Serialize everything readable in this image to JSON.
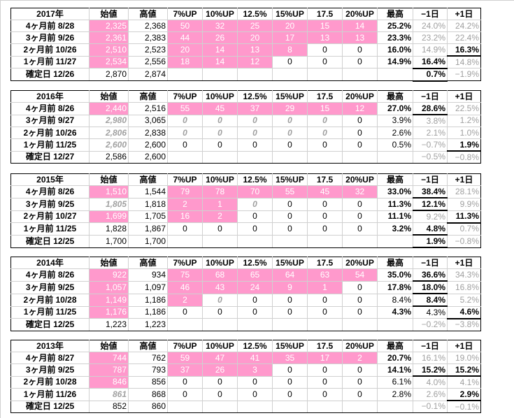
{
  "blocks": [
    {
      "year": "2017年",
      "headers": [
        "始値",
        "高値",
        "7%UP",
        "10%UP",
        "12.5%",
        "15%UP",
        "17.5",
        "20%UP",
        "最高",
        "−1日",
        "+1日"
      ],
      "rows": [
        {
          "label": "4ヶ月前  8/28",
          "open": "2,325",
          "high": "2,368",
          "ups": [
            "50",
            "32",
            "25",
            "20",
            "15",
            "14"
          ],
          "max": "25.2%",
          "m1": "24.0%",
          "p1": "24.2%"
        },
        {
          "label": "3ヶ月前  9/26",
          "open": "2,361",
          "high": "2,383",
          "ups": [
            "44",
            "26",
            "20",
            "17",
            "13",
            "13"
          ],
          "max": "23.3%",
          "m1": "23.2%",
          "p1": "22.4%"
        },
        {
          "label": "2ヶ月前  10/26",
          "open": "2,510",
          "high": "2,523",
          "ups": [
            "20",
            "14",
            "13",
            "8",
            "0",
            "0"
          ],
          "max": "16.0%",
          "m1": "14.9%",
          "p1": "16.3%"
        },
        {
          "label": "1ヶ月前  11/27",
          "open": "2,534",
          "high": "2,556",
          "ups": [
            "18",
            "14",
            "12",
            "0",
            "0",
            "0"
          ],
          "max": "14.9%",
          "m1": "16.4%",
          "p1": "14.8%"
        },
        {
          "label": "確定日  12/26",
          "open": "2,870",
          "high": "2,874",
          "ups": [
            "",
            "",
            "",
            "",
            "",
            ""
          ],
          "max": "",
          "m1": "0.7%",
          "p1": "−1.9%"
        }
      ]
    },
    {
      "year": "2016年",
      "headers": [
        "始値",
        "高値",
        "7%UP",
        "10%UP",
        "12.5%",
        "15%UP",
        "17.5",
        "20%UP",
        "最高",
        "−1日",
        "+1日"
      ],
      "rows": [
        {
          "label": "4ヶ月前  8/26",
          "open": "2,440",
          "high": "2,516",
          "ups": [
            "55",
            "45",
            "37",
            "29",
            "15",
            "12"
          ],
          "max": "27.0%",
          "m1": "28.6%",
          "p1": "22.5%"
        },
        {
          "label": "3ヶ月前  9/27",
          "open": "2,980",
          "high": "3,065",
          "ups": [
            "0",
            "0",
            "0",
            "0",
            "0",
            "0"
          ],
          "max": "3.9%",
          "m1": "3.8%",
          "p1": "1.2%"
        },
        {
          "label": "2ヶ月前  10/26",
          "open": "2,806",
          "high": "2,838",
          "ups": [
            "0",
            "0",
            "0",
            "0",
            "0",
            "0"
          ],
          "max": "2.6%",
          "m1": "2.1%",
          "p1": "1.0%"
        },
        {
          "label": "1ヶ月前  11/25",
          "open": "2,600",
          "high": "2,600",
          "ups": [
            "0",
            "0",
            "0",
            "0",
            "0",
            "0"
          ],
          "max": "0.5%",
          "m1": "−0.7%",
          "p1": "1.9%"
        },
        {
          "label": "確定日  12/27",
          "open": "2,586",
          "high": "2,600",
          "ups": [
            "",
            "",
            "",
            "",
            "",
            ""
          ],
          "max": "",
          "m1": "−0.5%",
          "p1": "−0.8%"
        }
      ]
    },
    {
      "year": "2015年",
      "headers": [
        "始値",
        "高値",
        "7%UP",
        "10%UP",
        "12.5%",
        "15%UP",
        "17.5",
        "20%UP",
        "最高",
        "−1日",
        "+1日"
      ],
      "rows": [
        {
          "label": "4ヶ月前  8/26",
          "open": "1,510",
          "high": "1,544",
          "ups": [
            "79",
            "78",
            "70",
            "55",
            "45",
            "32"
          ],
          "max": "33.0%",
          "m1": "38.4%",
          "p1": "28.1%"
        },
        {
          "label": "3ヶ月前  9/25",
          "open": "1,805",
          "high": "1,818",
          "ups": [
            "2",
            "1",
            "0",
            "0",
            "0",
            "0"
          ],
          "max": "11.3%",
          "m1": "12.1%",
          "p1": "9.9%"
        },
        {
          "label": "2ヶ月前  10/27",
          "open": "1,699",
          "high": "1,705",
          "ups": [
            "16",
            "2",
            "0",
            "0",
            "0",
            "0"
          ],
          "max": "11.1%",
          "m1": "9.2%",
          "p1": "11.3%"
        },
        {
          "label": "1ヶ月前  11/25",
          "open": "1,828",
          "high": "1,867",
          "ups": [
            "0",
            "0",
            "0",
            "0",
            "0",
            "0"
          ],
          "max": "3.2%",
          "m1": "4.8%",
          "p1": "0.7%"
        },
        {
          "label": "確定日  12/25",
          "open": "1,700",
          "high": "1,700",
          "ups": [
            "",
            "",
            "",
            "",
            "",
            ""
          ],
          "max": "",
          "m1": "1.9%",
          "p1": "−0.8%"
        }
      ]
    },
    {
      "year": "2014年",
      "headers": [
        "始値",
        "高値",
        "7%UP",
        "10%UP",
        "12.5%",
        "15%UP",
        "17.5",
        "20%UP",
        "最高",
        "−1日",
        "+1日"
      ],
      "rows": [
        {
          "label": "4ヶ月前  8/26",
          "open": "922",
          "high": "934",
          "ups": [
            "75",
            "68",
            "65",
            "64",
            "63",
            "54"
          ],
          "max": "35.0%",
          "m1": "36.6%",
          "p1": "34.3%"
        },
        {
          "label": "3ヶ月前  9/25",
          "open": "1,057",
          "high": "1,097",
          "ups": [
            "46",
            "43",
            "24",
            "9",
            "1",
            "0"
          ],
          "max": "17.8%",
          "m1": "18.0%",
          "p1": "16.8%"
        },
        {
          "label": "2ヶ月前  10/28",
          "open": "1,149",
          "high": "1,186",
          "ups": [
            "2",
            "0",
            "0",
            "0",
            "0",
            "0"
          ],
          "max": "8.4%",
          "m1": "8.4%",
          "p1": "5.2%"
        },
        {
          "label": "1ヶ月前  11/25",
          "open": "1,176",
          "high": "1,186",
          "ups": [
            "0",
            "0",
            "0",
            "0",
            "0",
            "0"
          ],
          "max": "4.3%",
          "m1": "4.3%",
          "p1": "4.6%"
        },
        {
          "label": "確定日  12/25",
          "open": "1,223",
          "high": "1,223",
          "ups": [
            "",
            "",
            "",
            "",
            "",
            ""
          ],
          "max": "",
          "m1": "−0.2%",
          "p1": "−3.8%"
        }
      ]
    },
    {
      "year": "2013年",
      "headers": [
        "始値",
        "高値",
        "7%UP",
        "10%UP",
        "12.5%",
        "15%UP",
        "17.5",
        "20%UP",
        "最高",
        "−1日",
        "+1日"
      ],
      "rows": [
        {
          "label": "4ヶ月前  8/27",
          "open": "744",
          "high": "762",
          "ups": [
            "59",
            "47",
            "41",
            "35",
            "17",
            "2"
          ],
          "max": "20.7%",
          "m1": "16.1%",
          "p1": "19.0%"
        },
        {
          "label": "3ヶ月前  9/25",
          "open": "787",
          "high": "793",
          "ups": [
            "37",
            "26",
            "3",
            "0",
            "0",
            "0"
          ],
          "max": "14.1%",
          "m1": "15.2%",
          "p1": "15.2%"
        },
        {
          "label": "2ヶ月前  10/28",
          "open": "846",
          "high": "856",
          "ups": [
            "0",
            "0",
            "0",
            "0",
            "0",
            "0"
          ],
          "max": "6.1%",
          "m1": "4.0%",
          "p1": "4.1%"
        },
        {
          "label": "1ヶ月前  11/26",
          "open": "861",
          "high": "868",
          "ups": [
            "0",
            "0",
            "0",
            "0",
            "0",
            "0"
          ],
          "max": "2.8%",
          "m1": "2.6%",
          "p1": "2.9%"
        },
        {
          "label": "確定日  12/25",
          "open": "852",
          "high": "860",
          "ups": [
            "",
            "",
            "",
            "",
            "",
            ""
          ],
          "max": "",
          "m1": "−0.1%",
          "p1": "−0.1%"
        }
      ]
    }
  ]
}
